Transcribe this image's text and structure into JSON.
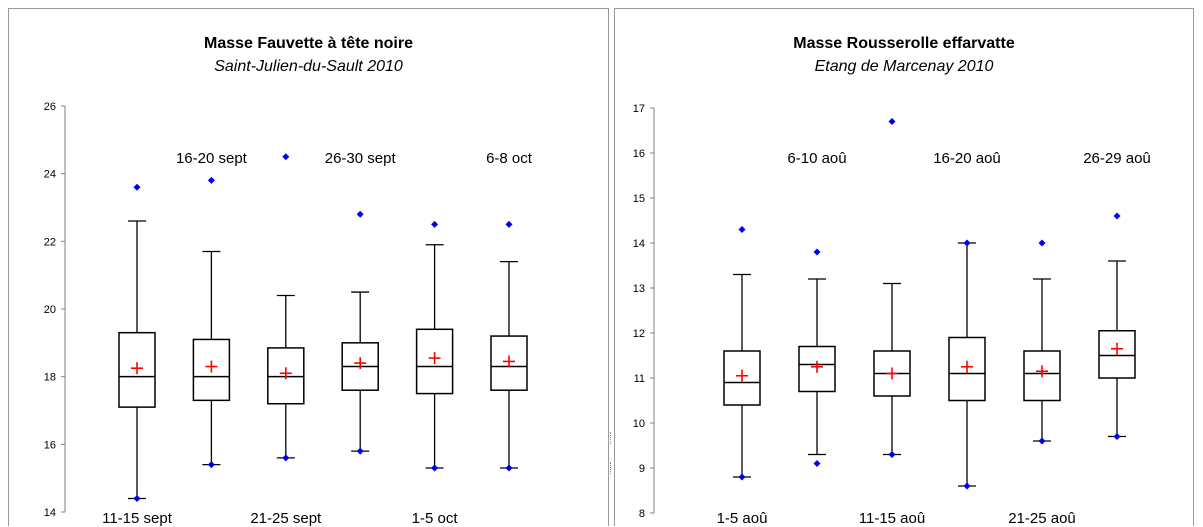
{
  "chart_data": [
    {
      "type": "box",
      "title": "Masse Fauvette à tête noire",
      "subtitle": "Saint-Julien-du-Sault 2010",
      "ylim": [
        14,
        26
      ],
      "yticks": [
        14,
        16,
        18,
        20,
        22,
        24,
        26
      ],
      "grid": false,
      "categories": [
        "11-15 sept",
        "16-20 sept",
        "21-25 sept",
        "26-30 sept",
        "1-5 oct",
        "6-8 oct"
      ],
      "boxes": [
        {
          "min": 14.4,
          "q1": 17.1,
          "median": 18.0,
          "q3": 19.3,
          "max": 22.6,
          "mean": 18.25,
          "outliers_high": [
            23.6
          ],
          "outliers_low": [
            14.4
          ]
        },
        {
          "min": 15.4,
          "q1": 17.3,
          "median": 18.0,
          "q3": 19.1,
          "max": 21.7,
          "mean": 18.3,
          "outliers_high": [
            23.8
          ],
          "outliers_low": [
            15.4
          ]
        },
        {
          "min": 15.6,
          "q1": 17.2,
          "median": 18.0,
          "q3": 18.85,
          "max": 20.4,
          "mean": 18.1,
          "outliers_high": [
            24.5
          ],
          "outliers_low": [
            15.6
          ]
        },
        {
          "min": 15.8,
          "q1": 17.6,
          "median": 18.3,
          "q3": 19.0,
          "max": 20.5,
          "mean": 18.4,
          "outliers_high": [
            22.8
          ],
          "outliers_low": [
            15.8
          ]
        },
        {
          "min": 15.3,
          "q1": 17.5,
          "median": 18.3,
          "q3": 19.4,
          "max": 21.9,
          "mean": 18.55,
          "outliers_high": [
            22.5
          ],
          "outliers_low": [
            15.3
          ]
        },
        {
          "min": 15.3,
          "q1": 17.6,
          "median": 18.3,
          "q3": 19.2,
          "max": 21.4,
          "mean": 18.45,
          "outliers_high": [
            22.5
          ],
          "outliers_low": [
            15.3
          ]
        }
      ]
    },
    {
      "type": "box",
      "title": "Masse Rousserolle effarvatte",
      "subtitle": "Etang de Marcenay 2010",
      "ylim": [
        8,
        17
      ],
      "yticks": [
        8,
        9,
        10,
        11,
        12,
        13,
        14,
        15,
        16,
        17
      ],
      "grid": false,
      "categories": [
        "1-5 aoû",
        "6-10 aoû",
        "11-15 aoû",
        "16-20 aoû",
        "21-25 aoû",
        "26-29 aoû"
      ],
      "boxes": [
        {
          "min": 8.8,
          "q1": 10.4,
          "median": 10.9,
          "q3": 11.6,
          "max": 13.3,
          "mean": 11.05,
          "outliers_high": [
            14.3
          ],
          "outliers_low": [
            8.8
          ]
        },
        {
          "min": 9.3,
          "q1": 10.7,
          "median": 11.3,
          "q3": 11.7,
          "max": 13.2,
          "mean": 11.25,
          "outliers_high": [
            13.8
          ],
          "outliers_low": [
            9.1
          ]
        },
        {
          "min": 9.3,
          "q1": 10.6,
          "median": 11.1,
          "q3": 11.6,
          "max": 13.1,
          "mean": 11.1,
          "outliers_high": [
            16.7
          ],
          "outliers_low": [
            9.3
          ]
        },
        {
          "min": 8.6,
          "q1": 10.5,
          "median": 11.1,
          "q3": 11.9,
          "max": 14.0,
          "mean": 11.25,
          "outliers_high": [
            14.0
          ],
          "outliers_low": [
            8.6
          ]
        },
        {
          "min": 9.6,
          "q1": 10.5,
          "median": 11.1,
          "q3": 11.6,
          "max": 13.2,
          "mean": 11.15,
          "outliers_high": [
            14.0
          ],
          "outliers_low": [
            9.6
          ]
        },
        {
          "min": 9.7,
          "q1": 11.0,
          "median": 11.5,
          "q3": 12.05,
          "max": 13.6,
          "mean": 11.65,
          "outliers_high": [
            14.6
          ],
          "outliers_low": [
            9.7
          ]
        }
      ]
    }
  ],
  "colors": {
    "outlier": "#0000ee",
    "mean": "#ff0000",
    "box": "#000000",
    "panel_border": "#9a9a9a"
  }
}
